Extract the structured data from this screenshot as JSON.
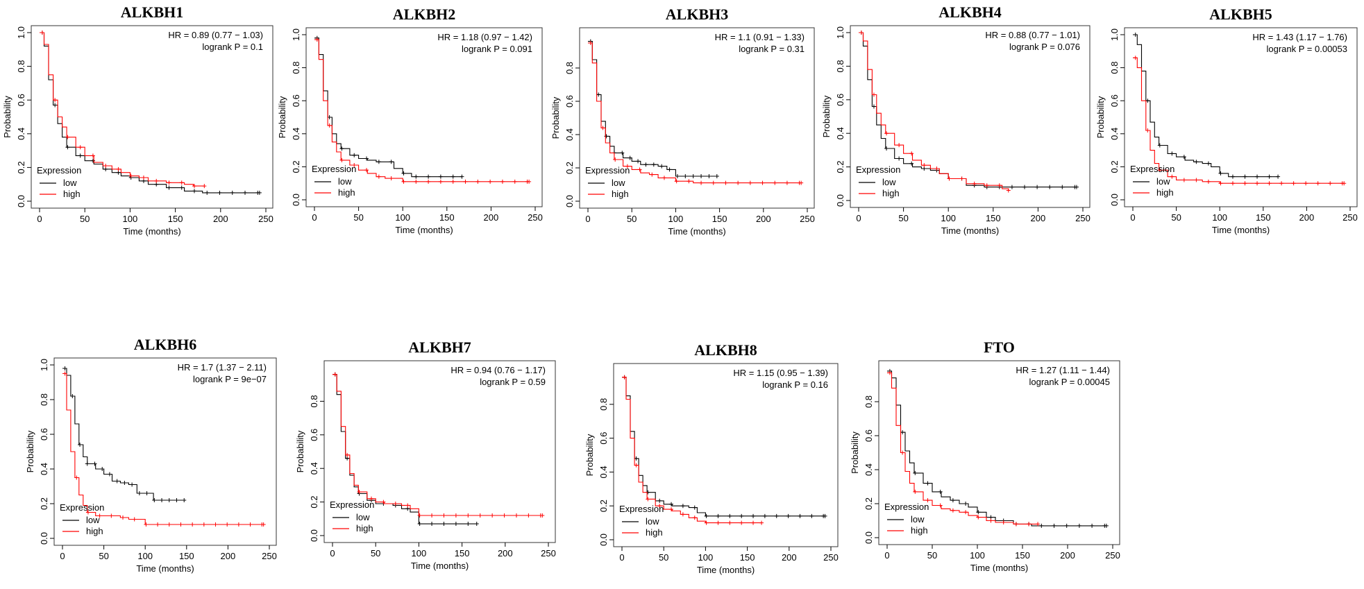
{
  "colors": {
    "low": "#000000",
    "high": "#ff0000",
    "frame": "#333333"
  },
  "chart_data": [
    {
      "type": "line",
      "title": "ALKBH1",
      "xlabel": "Time (months)",
      "ylabel": "Probability",
      "xlim": [
        0,
        250
      ],
      "ylim": [
        0,
        1
      ],
      "x_ticks": [
        "0",
        "50",
        "100",
        "150",
        "200",
        "250"
      ],
      "y_ticks": [
        "0.0",
        "0.2",
        "0.4",
        "0.6",
        "0.8",
        "1.0"
      ],
      "stats": [
        "HR = 0.89 (0.77 − 1.03)",
        "logrank P = 0.1"
      ],
      "legend": {
        "title": "Expression",
        "entries": [
          "low",
          "high"
        ],
        "placement": "bottom-left"
      },
      "series": [
        {
          "name": "low",
          "x": [
            0,
            5,
            10,
            15,
            20,
            25,
            30,
            40,
            50,
            60,
            70,
            80,
            90,
            100,
            110,
            120,
            140,
            160,
            180,
            200,
            220,
            243
          ],
          "y": [
            1.0,
            0.92,
            0.72,
            0.57,
            0.46,
            0.38,
            0.32,
            0.27,
            0.24,
            0.22,
            0.19,
            0.17,
            0.15,
            0.14,
            0.12,
            0.1,
            0.08,
            0.06,
            0.05,
            0.05,
            0.05,
            0.05
          ]
        },
        {
          "name": "high",
          "x": [
            0,
            5,
            10,
            15,
            20,
            25,
            30,
            40,
            50,
            60,
            70,
            80,
            90,
            100,
            110,
            120,
            140,
            160,
            170,
            182
          ],
          "y": [
            1.0,
            0.93,
            0.75,
            0.6,
            0.5,
            0.44,
            0.38,
            0.32,
            0.27,
            0.23,
            0.21,
            0.19,
            0.17,
            0.15,
            0.14,
            0.12,
            0.11,
            0.1,
            0.09,
            0.09
          ]
        }
      ]
    },
    {
      "type": "line",
      "title": "ALKBH2",
      "xlabel": "Time (months)",
      "ylabel": "Probability",
      "xlim": [
        0,
        250
      ],
      "ylim": [
        0,
        1
      ],
      "x_ticks": [
        "0",
        "50",
        "100",
        "150",
        "200",
        "250"
      ],
      "y_ticks": [
        "0.0",
        "0.2",
        "0.4",
        "0.6",
        "0.8",
        "1.0"
      ],
      "stats": [
        "HR = 1.18 (0.97 − 1.42)",
        "logrank P = 0.091"
      ],
      "legend": {
        "title": "Expression",
        "entries": [
          "low",
          "high"
        ],
        "placement": "bottom-left"
      },
      "series": [
        {
          "name": "low",
          "x": [
            0,
            5,
            10,
            15,
            20,
            25,
            30,
            40,
            50,
            60,
            70,
            80,
            90,
            100,
            110,
            120,
            140,
            167
          ],
          "y": [
            0.98,
            0.88,
            0.66,
            0.5,
            0.4,
            0.34,
            0.31,
            0.27,
            0.25,
            0.24,
            0.23,
            0.23,
            0.19,
            0.16,
            0.14,
            0.14,
            0.14,
            0.14
          ]
        },
        {
          "name": "high",
          "x": [
            0,
            5,
            10,
            15,
            20,
            25,
            30,
            40,
            50,
            60,
            70,
            80,
            100,
            120,
            150,
            200,
            243
          ],
          "y": [
            0.97,
            0.85,
            0.6,
            0.45,
            0.35,
            0.29,
            0.24,
            0.21,
            0.18,
            0.16,
            0.14,
            0.13,
            0.11,
            0.11,
            0.11,
            0.11,
            0.11
          ]
        }
      ]
    },
    {
      "type": "line",
      "title": "ALKBH3",
      "xlabel": "Time (months)",
      "ylabel": "Probability",
      "xlim": [
        0,
        250
      ],
      "ylim": [
        0,
        1
      ],
      "x_ticks": [
        "0",
        "50",
        "100",
        "150",
        "200",
        "250"
      ],
      "y_ticks": [
        "0.0",
        "0.2",
        "0.4",
        "0.6",
        "0.8"
      ],
      "stats": [
        "HR = 1.1 (0.91 − 1.33)",
        "logrank P = 0.31"
      ],
      "legend": {
        "title": "Expression",
        "entries": [
          "low",
          "high"
        ],
        "placement": "bottom-left"
      },
      "series": [
        {
          "name": "low",
          "x": [
            0,
            5,
            10,
            15,
            20,
            25,
            30,
            40,
            50,
            60,
            70,
            80,
            90,
            100,
            110,
            120,
            147
          ],
          "y": [
            0.96,
            0.85,
            0.64,
            0.48,
            0.39,
            0.33,
            0.29,
            0.26,
            0.24,
            0.22,
            0.22,
            0.21,
            0.19,
            0.15,
            0.15,
            0.15,
            0.15
          ]
        },
        {
          "name": "high",
          "x": [
            0,
            5,
            10,
            15,
            20,
            25,
            30,
            40,
            50,
            60,
            70,
            80,
            100,
            120,
            160,
            200,
            243
          ],
          "y": [
            0.95,
            0.83,
            0.6,
            0.44,
            0.35,
            0.29,
            0.25,
            0.21,
            0.19,
            0.17,
            0.16,
            0.14,
            0.12,
            0.11,
            0.11,
            0.11,
            0.11
          ]
        }
      ]
    },
    {
      "type": "line",
      "title": "ALKBH4",
      "xlabel": "Time (months)",
      "ylabel": "Probability",
      "xlim": [
        0,
        250
      ],
      "ylim": [
        0,
        1
      ],
      "x_ticks": [
        "0",
        "50",
        "100",
        "150",
        "200",
        "250"
      ],
      "y_ticks": [
        "0.0",
        "0.2",
        "0.4",
        "0.6",
        "0.8",
        "1.0"
      ],
      "stats": [
        "HR = 0.88 (0.77 − 1.01)",
        "logrank P = 0.076"
      ],
      "legend": {
        "title": "Expression",
        "entries": [
          "low",
          "high"
        ],
        "placement": "bottom-left"
      },
      "series": [
        {
          "name": "low",
          "x": [
            0,
            5,
            10,
            15,
            20,
            25,
            30,
            40,
            50,
            60,
            70,
            80,
            90,
            100,
            120,
            140,
            160,
            180,
            200,
            243
          ],
          "y": [
            1.0,
            0.92,
            0.72,
            0.56,
            0.45,
            0.37,
            0.31,
            0.25,
            0.22,
            0.2,
            0.19,
            0.18,
            0.16,
            0.13,
            0.09,
            0.08,
            0.08,
            0.08,
            0.08,
            0.08
          ]
        },
        {
          "name": "high",
          "x": [
            0,
            5,
            10,
            15,
            20,
            25,
            30,
            40,
            50,
            60,
            70,
            80,
            90,
            100,
            120,
            140,
            160,
            167
          ],
          "y": [
            1.0,
            0.95,
            0.78,
            0.63,
            0.52,
            0.45,
            0.4,
            0.33,
            0.28,
            0.24,
            0.21,
            0.19,
            0.16,
            0.13,
            0.1,
            0.09,
            0.07,
            0.06
          ]
        }
      ]
    },
    {
      "type": "line",
      "title": "ALKBH5",
      "xlabel": "Time (months)",
      "ylabel": "Probability",
      "xlim": [
        0,
        250
      ],
      "ylim": [
        0,
        1
      ],
      "x_ticks": [
        "0",
        "50",
        "100",
        "150",
        "200",
        "250"
      ],
      "y_ticks": [
        "0.0",
        "0.2",
        "0.4",
        "0.6",
        "0.8",
        "1.0"
      ],
      "stats": [
        "HR = 1.43 (1.17 − 1.76)",
        "logrank P = 0.00053"
      ],
      "legend": {
        "title": "Expression",
        "entries": [
          "low",
          "high"
        ],
        "placement": "bottom-left"
      },
      "series": [
        {
          "name": "low",
          "x": [
            0,
            5,
            10,
            15,
            20,
            25,
            30,
            40,
            50,
            60,
            70,
            80,
            90,
            100,
            110,
            120,
            140,
            167
          ],
          "y": [
            1.0,
            0.94,
            0.78,
            0.6,
            0.47,
            0.38,
            0.33,
            0.28,
            0.26,
            0.24,
            0.23,
            0.22,
            0.2,
            0.16,
            0.14,
            0.14,
            0.14,
            0.14
          ]
        },
        {
          "name": "high",
          "x": [
            0,
            5,
            10,
            15,
            20,
            25,
            30,
            40,
            50,
            60,
            80,
            100,
            150,
            200,
            243
          ],
          "y": [
            0.86,
            0.8,
            0.6,
            0.42,
            0.3,
            0.22,
            0.18,
            0.14,
            0.12,
            0.12,
            0.11,
            0.1,
            0.1,
            0.1,
            0.1
          ]
        }
      ]
    },
    {
      "type": "line",
      "title": "ALKBH6",
      "xlabel": "Time (months)",
      "ylabel": "Probability",
      "xlim": [
        0,
        250
      ],
      "ylim": [
        0,
        1
      ],
      "x_ticks": [
        "0",
        "50",
        "100",
        "150",
        "200",
        "250"
      ],
      "y_ticks": [
        "0.0",
        "0.2",
        "0.4",
        "0.6",
        "0.8",
        "1.0"
      ],
      "stats": [
        "HR = 1.7 (1.37 − 2.11)",
        "logrank P = 9e−07"
      ],
      "legend": {
        "title": "Expression",
        "entries": [
          "low",
          "high"
        ],
        "placement": "bottom-left"
      },
      "series": [
        {
          "name": "low",
          "x": [
            0,
            5,
            10,
            15,
            20,
            25,
            30,
            40,
            50,
            60,
            70,
            80,
            90,
            100,
            110,
            130,
            147
          ],
          "y": [
            0.98,
            0.94,
            0.82,
            0.66,
            0.54,
            0.47,
            0.43,
            0.4,
            0.37,
            0.33,
            0.32,
            0.31,
            0.26,
            0.26,
            0.22,
            0.22,
            0.22
          ]
        },
        {
          "name": "high",
          "x": [
            0,
            5,
            10,
            15,
            20,
            25,
            30,
            40,
            50,
            60,
            70,
            80,
            100,
            120,
            150,
            200,
            243
          ],
          "y": [
            0.95,
            0.74,
            0.5,
            0.35,
            0.25,
            0.19,
            0.15,
            0.13,
            0.13,
            0.13,
            0.12,
            0.11,
            0.08,
            0.08,
            0.08,
            0.08,
            0.08
          ]
        }
      ]
    },
    {
      "type": "line",
      "title": "ALKBH7",
      "xlabel": "Time (months)",
      "ylabel": "Probability",
      "xlim": [
        0,
        250
      ],
      "ylim": [
        0,
        1
      ],
      "x_ticks": [
        "0",
        "50",
        "100",
        "150",
        "200",
        "250"
      ],
      "y_ticks": [
        "0.0",
        "0.2",
        "0.4",
        "0.6",
        "0.8"
      ],
      "stats": [
        "HR = 0.94 (0.76 − 1.17)",
        "logrank P = 0.59"
      ],
      "legend": {
        "title": "Expression",
        "entries": [
          "low",
          "high"
        ],
        "placement": "bottom-left"
      },
      "series": [
        {
          "name": "low",
          "x": [
            0,
            5,
            10,
            15,
            20,
            25,
            30,
            40,
            50,
            60,
            70,
            80,
            90,
            100,
            120,
            140,
            167
          ],
          "y": [
            0.96,
            0.84,
            0.62,
            0.46,
            0.36,
            0.29,
            0.25,
            0.21,
            0.19,
            0.19,
            0.18,
            0.16,
            0.14,
            0.07,
            0.07,
            0.07,
            0.07
          ]
        },
        {
          "name": "high",
          "x": [
            0,
            5,
            10,
            15,
            20,
            25,
            30,
            40,
            50,
            60,
            70,
            80,
            90,
            100,
            150,
            200,
            243
          ],
          "y": [
            0.96,
            0.86,
            0.65,
            0.48,
            0.37,
            0.3,
            0.26,
            0.22,
            0.2,
            0.19,
            0.19,
            0.18,
            0.16,
            0.12,
            0.12,
            0.12,
            0.12
          ]
        }
      ]
    },
    {
      "type": "line",
      "title": "ALKBH8",
      "xlabel": "Time (months)",
      "ylabel": "Probability",
      "xlim": [
        0,
        250
      ],
      "ylim": [
        0,
        1
      ],
      "x_ticks": [
        "0",
        "50",
        "100",
        "150",
        "200",
        "250"
      ],
      "y_ticks": [
        "0.0",
        "0.2",
        "0.4",
        "0.6",
        "0.8"
      ],
      "stats": [
        "HR = 1.15 (0.95 − 1.39)",
        "logrank P = 0.16"
      ],
      "legend": {
        "title": "Expression",
        "entries": [
          "low",
          "high"
        ],
        "placement": "bottom-left"
      },
      "series": [
        {
          "name": "low",
          "x": [
            0,
            5,
            10,
            15,
            20,
            25,
            30,
            40,
            50,
            60,
            70,
            80,
            90,
            100,
            120,
            150,
            200,
            243
          ],
          "y": [
            0.96,
            0.85,
            0.64,
            0.48,
            0.38,
            0.32,
            0.28,
            0.23,
            0.21,
            0.2,
            0.2,
            0.19,
            0.16,
            0.14,
            0.14,
            0.14,
            0.14,
            0.14
          ]
        },
        {
          "name": "high",
          "x": [
            0,
            5,
            10,
            15,
            20,
            25,
            30,
            40,
            50,
            60,
            70,
            80,
            90,
            100,
            120,
            140,
            167
          ],
          "y": [
            0.96,
            0.83,
            0.6,
            0.44,
            0.34,
            0.28,
            0.24,
            0.2,
            0.18,
            0.17,
            0.15,
            0.13,
            0.11,
            0.1,
            0.1,
            0.1,
            0.1
          ]
        }
      ]
    },
    {
      "type": "line",
      "title": "FTO",
      "xlabel": "Time (months)",
      "ylabel": "Probability",
      "xlim": [
        0,
        250
      ],
      "ylim": [
        0,
        1
      ],
      "x_ticks": [
        "0",
        "50",
        "100",
        "150",
        "200",
        "250"
      ],
      "y_ticks": [
        "0.0",
        "0.2",
        "0.4",
        "0.6",
        "0.8"
      ],
      "stats": [
        "HR = 1.27 (1.11 − 1.44)",
        "logrank P = 0.00045"
      ],
      "legend": {
        "title": "Expression",
        "entries": [
          "low",
          "high"
        ],
        "placement": "bottom-left"
      },
      "series": [
        {
          "name": "low",
          "x": [
            0,
            5,
            10,
            15,
            20,
            25,
            30,
            40,
            50,
            60,
            70,
            80,
            90,
            100,
            110,
            120,
            140,
            160,
            180,
            200,
            243
          ],
          "y": [
            0.98,
            0.94,
            0.78,
            0.62,
            0.51,
            0.44,
            0.38,
            0.32,
            0.27,
            0.24,
            0.22,
            0.2,
            0.18,
            0.15,
            0.12,
            0.1,
            0.08,
            0.07,
            0.07,
            0.07,
            0.07
          ]
        },
        {
          "name": "high",
          "x": [
            0,
            5,
            10,
            15,
            20,
            25,
            30,
            40,
            50,
            60,
            70,
            80,
            90,
            100,
            110,
            120,
            140,
            160,
            167
          ],
          "y": [
            0.97,
            0.88,
            0.66,
            0.5,
            0.39,
            0.32,
            0.27,
            0.22,
            0.19,
            0.17,
            0.16,
            0.15,
            0.13,
            0.12,
            0.1,
            0.09,
            0.08,
            0.08,
            0.08
          ]
        }
      ]
    }
  ]
}
